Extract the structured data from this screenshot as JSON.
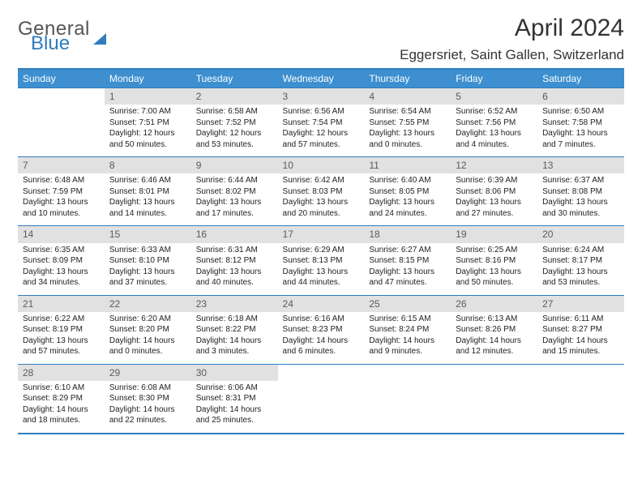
{
  "logo": {
    "word1": "General",
    "word2": "Blue"
  },
  "title": "April 2024",
  "location": "Eggersriet, Saint Gallen, Switzerland",
  "colors": {
    "header_bg": "#3d8fcf",
    "header_text": "#ffffff",
    "daynum_bg": "#e1e1e1",
    "daynum_text": "#5a5a5a",
    "border": "#2f7dbf",
    "body_text": "#222222",
    "logo_gray": "#555555",
    "logo_blue": "#2f7dbf"
  },
  "weekdays": [
    "Sunday",
    "Monday",
    "Tuesday",
    "Wednesday",
    "Thursday",
    "Friday",
    "Saturday"
  ],
  "weeks": [
    [
      null,
      {
        "n": "1",
        "sr": "Sunrise: 7:00 AM",
        "ss": "Sunset: 7:51 PM",
        "d1": "Daylight: 12 hours",
        "d2": "and 50 minutes."
      },
      {
        "n": "2",
        "sr": "Sunrise: 6:58 AM",
        "ss": "Sunset: 7:52 PM",
        "d1": "Daylight: 12 hours",
        "d2": "and 53 minutes."
      },
      {
        "n": "3",
        "sr": "Sunrise: 6:56 AM",
        "ss": "Sunset: 7:54 PM",
        "d1": "Daylight: 12 hours",
        "d2": "and 57 minutes."
      },
      {
        "n": "4",
        "sr": "Sunrise: 6:54 AM",
        "ss": "Sunset: 7:55 PM",
        "d1": "Daylight: 13 hours",
        "d2": "and 0 minutes."
      },
      {
        "n": "5",
        "sr": "Sunrise: 6:52 AM",
        "ss": "Sunset: 7:56 PM",
        "d1": "Daylight: 13 hours",
        "d2": "and 4 minutes."
      },
      {
        "n": "6",
        "sr": "Sunrise: 6:50 AM",
        "ss": "Sunset: 7:58 PM",
        "d1": "Daylight: 13 hours",
        "d2": "and 7 minutes."
      }
    ],
    [
      {
        "n": "7",
        "sr": "Sunrise: 6:48 AM",
        "ss": "Sunset: 7:59 PM",
        "d1": "Daylight: 13 hours",
        "d2": "and 10 minutes."
      },
      {
        "n": "8",
        "sr": "Sunrise: 6:46 AM",
        "ss": "Sunset: 8:01 PM",
        "d1": "Daylight: 13 hours",
        "d2": "and 14 minutes."
      },
      {
        "n": "9",
        "sr": "Sunrise: 6:44 AM",
        "ss": "Sunset: 8:02 PM",
        "d1": "Daylight: 13 hours",
        "d2": "and 17 minutes."
      },
      {
        "n": "10",
        "sr": "Sunrise: 6:42 AM",
        "ss": "Sunset: 8:03 PM",
        "d1": "Daylight: 13 hours",
        "d2": "and 20 minutes."
      },
      {
        "n": "11",
        "sr": "Sunrise: 6:40 AM",
        "ss": "Sunset: 8:05 PM",
        "d1": "Daylight: 13 hours",
        "d2": "and 24 minutes."
      },
      {
        "n": "12",
        "sr": "Sunrise: 6:39 AM",
        "ss": "Sunset: 8:06 PM",
        "d1": "Daylight: 13 hours",
        "d2": "and 27 minutes."
      },
      {
        "n": "13",
        "sr": "Sunrise: 6:37 AM",
        "ss": "Sunset: 8:08 PM",
        "d1": "Daylight: 13 hours",
        "d2": "and 30 minutes."
      }
    ],
    [
      {
        "n": "14",
        "sr": "Sunrise: 6:35 AM",
        "ss": "Sunset: 8:09 PM",
        "d1": "Daylight: 13 hours",
        "d2": "and 34 minutes."
      },
      {
        "n": "15",
        "sr": "Sunrise: 6:33 AM",
        "ss": "Sunset: 8:10 PM",
        "d1": "Daylight: 13 hours",
        "d2": "and 37 minutes."
      },
      {
        "n": "16",
        "sr": "Sunrise: 6:31 AM",
        "ss": "Sunset: 8:12 PM",
        "d1": "Daylight: 13 hours",
        "d2": "and 40 minutes."
      },
      {
        "n": "17",
        "sr": "Sunrise: 6:29 AM",
        "ss": "Sunset: 8:13 PM",
        "d1": "Daylight: 13 hours",
        "d2": "and 44 minutes."
      },
      {
        "n": "18",
        "sr": "Sunrise: 6:27 AM",
        "ss": "Sunset: 8:15 PM",
        "d1": "Daylight: 13 hours",
        "d2": "and 47 minutes."
      },
      {
        "n": "19",
        "sr": "Sunrise: 6:25 AM",
        "ss": "Sunset: 8:16 PM",
        "d1": "Daylight: 13 hours",
        "d2": "and 50 minutes."
      },
      {
        "n": "20",
        "sr": "Sunrise: 6:24 AM",
        "ss": "Sunset: 8:17 PM",
        "d1": "Daylight: 13 hours",
        "d2": "and 53 minutes."
      }
    ],
    [
      {
        "n": "21",
        "sr": "Sunrise: 6:22 AM",
        "ss": "Sunset: 8:19 PM",
        "d1": "Daylight: 13 hours",
        "d2": "and 57 minutes."
      },
      {
        "n": "22",
        "sr": "Sunrise: 6:20 AM",
        "ss": "Sunset: 8:20 PM",
        "d1": "Daylight: 14 hours",
        "d2": "and 0 minutes."
      },
      {
        "n": "23",
        "sr": "Sunrise: 6:18 AM",
        "ss": "Sunset: 8:22 PM",
        "d1": "Daylight: 14 hours",
        "d2": "and 3 minutes."
      },
      {
        "n": "24",
        "sr": "Sunrise: 6:16 AM",
        "ss": "Sunset: 8:23 PM",
        "d1": "Daylight: 14 hours",
        "d2": "and 6 minutes."
      },
      {
        "n": "25",
        "sr": "Sunrise: 6:15 AM",
        "ss": "Sunset: 8:24 PM",
        "d1": "Daylight: 14 hours",
        "d2": "and 9 minutes."
      },
      {
        "n": "26",
        "sr": "Sunrise: 6:13 AM",
        "ss": "Sunset: 8:26 PM",
        "d1": "Daylight: 14 hours",
        "d2": "and 12 minutes."
      },
      {
        "n": "27",
        "sr": "Sunrise: 6:11 AM",
        "ss": "Sunset: 8:27 PM",
        "d1": "Daylight: 14 hours",
        "d2": "and 15 minutes."
      }
    ],
    [
      {
        "n": "28",
        "sr": "Sunrise: 6:10 AM",
        "ss": "Sunset: 8:29 PM",
        "d1": "Daylight: 14 hours",
        "d2": "and 18 minutes."
      },
      {
        "n": "29",
        "sr": "Sunrise: 6:08 AM",
        "ss": "Sunset: 8:30 PM",
        "d1": "Daylight: 14 hours",
        "d2": "and 22 minutes."
      },
      {
        "n": "30",
        "sr": "Sunrise: 6:06 AM",
        "ss": "Sunset: 8:31 PM",
        "d1": "Daylight: 14 hours",
        "d2": "and 25 minutes."
      },
      null,
      null,
      null,
      null
    ]
  ]
}
